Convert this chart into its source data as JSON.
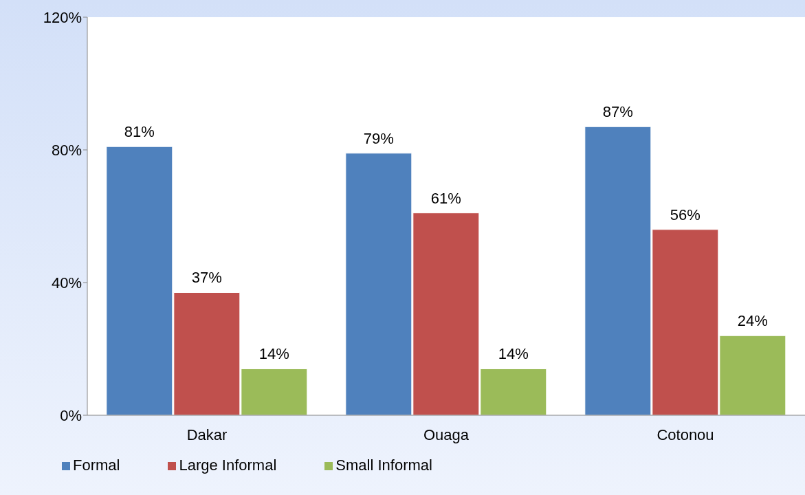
{
  "chart_data": {
    "type": "bar",
    "categories": [
      "Dakar",
      "Ouaga",
      "Cotonou"
    ],
    "series": [
      {
        "name": "Formal",
        "color": "#4f81bd",
        "values": [
          81,
          79,
          87
        ],
        "value_labels": [
          "81%",
          "79%",
          "87%"
        ]
      },
      {
        "name": "Large Informal",
        "color": "#c0504d",
        "values": [
          37,
          61,
          56
        ],
        "value_labels": [
          "37%",
          "61%",
          "56%"
        ]
      },
      {
        "name": "Small Informal",
        "color": "#9bbb59",
        "values": [
          14,
          14,
          24
        ],
        "value_labels": [
          "14%",
          "14%",
          "24%"
        ]
      }
    ],
    "ylim": [
      0,
      120
    ],
    "yticks": [
      {
        "value": 0,
        "label": "0%"
      },
      {
        "value": 40,
        "label": "40%"
      },
      {
        "value": 80,
        "label": "80%"
      },
      {
        "value": 120,
        "label": "120%"
      }
    ],
    "grid": false,
    "legend": "bottom left"
  }
}
